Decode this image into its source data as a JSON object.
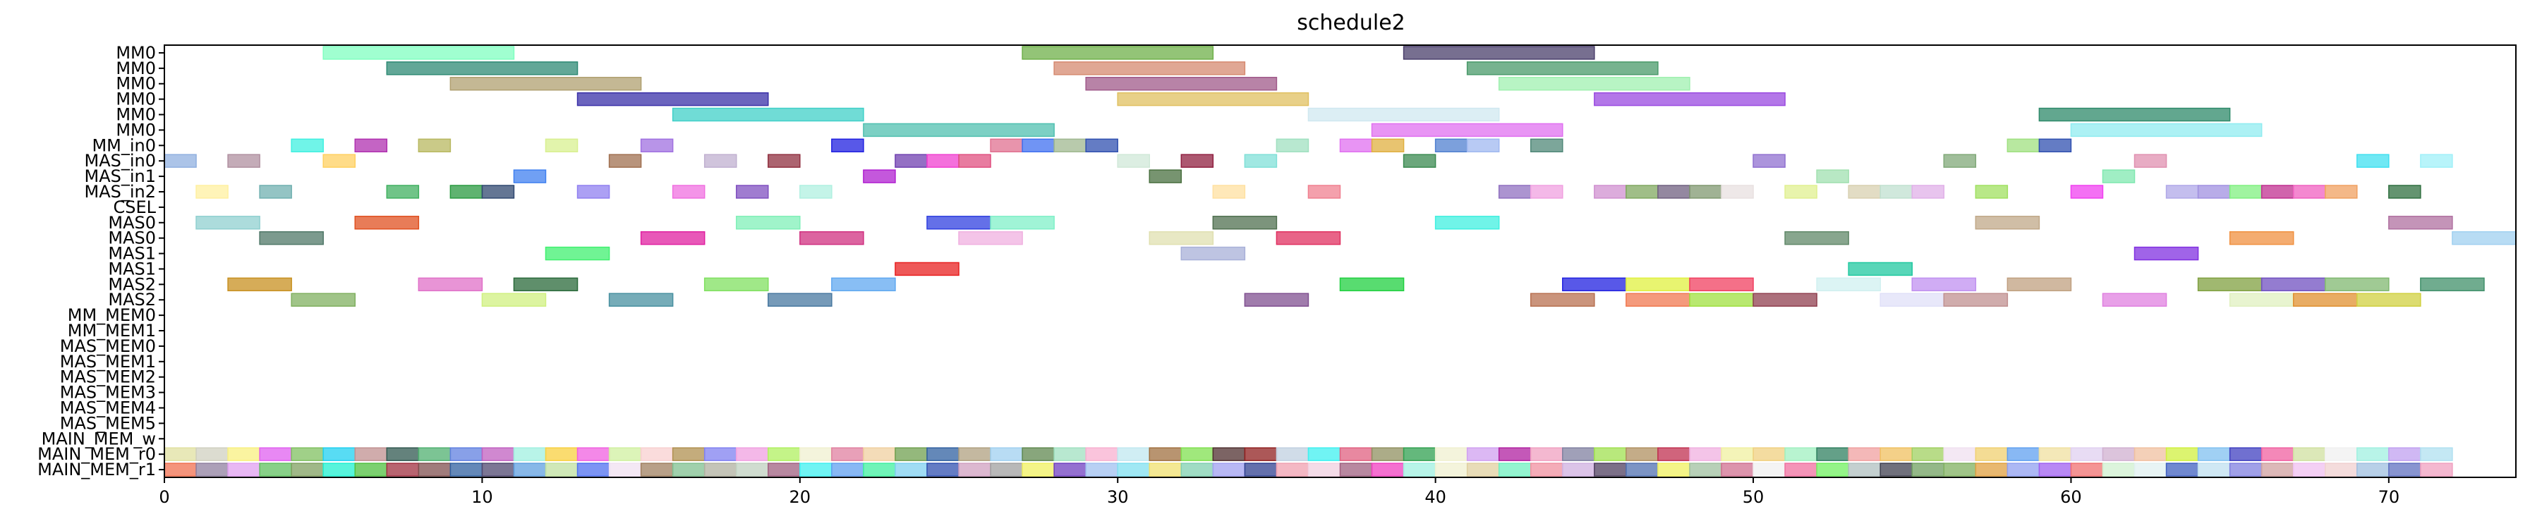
{
  "chart_data": {
    "type": "gantt",
    "title": "schedule2",
    "xlabel": "",
    "ylabel": "",
    "xlim": [
      0,
      74
    ],
    "xticks": [
      0,
      10,
      20,
      30,
      40,
      50,
      60,
      70
    ],
    "grid": false,
    "rows": [
      "MM0",
      "MM0",
      "MM0",
      "MM0",
      "MM0",
      "MM0",
      "MM_in0",
      "MAS_in0",
      "MAS_in1",
      "MAS_in2",
      "CSEL",
      "MAS0",
      "MAS0",
      "MAS1",
      "MAS1",
      "MAS2",
      "MAS2",
      "MM_MEM0",
      "MM_MEM1",
      "MAS_MEM0",
      "MAS_MEM1",
      "MAS_MEM2",
      "MAS_MEM3",
      "MAS_MEM4",
      "MAS_MEM5",
      "MAIN_MEM_w",
      "MAIN_MEM_r0",
      "MAIN_MEM_r1"
    ],
    "bars": [
      {
        "row": 0,
        "start": 5,
        "end": 11,
        "color": "#80ffc0"
      },
      {
        "row": 0,
        "start": 27,
        "end": 33,
        "color": "#6fb04a"
      },
      {
        "row": 0,
        "start": 39,
        "end": 45,
        "color": "#4a3f6b"
      },
      {
        "row": 1,
        "start": 7,
        "end": 13,
        "color": "#2e8a74"
      },
      {
        "row": 1,
        "start": 28,
        "end": 34,
        "color": "#d68a70"
      },
      {
        "row": 1,
        "start": 41,
        "end": 47,
        "color": "#4a9a6a"
      },
      {
        "row": 2,
        "start": 9,
        "end": 15,
        "color": "#b0a070"
      },
      {
        "row": 2,
        "start": 29,
        "end": 35,
        "color": "#a05a8a"
      },
      {
        "row": 2,
        "start": 42,
        "end": 48,
        "color": "#a0f0b0"
      },
      {
        "row": 3,
        "start": 13,
        "end": 19,
        "color": "#3a30a8"
      },
      {
        "row": 3,
        "start": 30,
        "end": 36,
        "color": "#e0c060"
      },
      {
        "row": 3,
        "start": 45,
        "end": 51,
        "color": "#9a4ae0"
      },
      {
        "row": 4,
        "start": 16,
        "end": 22,
        "color": "#40d0c8"
      },
      {
        "row": 4,
        "start": 36,
        "end": 42,
        "color": "#d0e8f0"
      },
      {
        "row": 4,
        "start": 59,
        "end": 65,
        "color": "#2e8a6a"
      },
      {
        "row": 5,
        "start": 22,
        "end": 28,
        "color": "#50c0b0"
      },
      {
        "row": 5,
        "start": 38,
        "end": 44,
        "color": "#e070f0"
      },
      {
        "row": 5,
        "start": 60,
        "end": 66,
        "color": "#90ecf0"
      },
      {
        "row": 6,
        "start": 4,
        "end": 5,
        "color": "#40f0e0"
      },
      {
        "row": 6,
        "start": 6,
        "end": 7,
        "color": "#b030b0"
      },
      {
        "row": 6,
        "start": 8,
        "end": 9,
        "color": "#b8b860"
      },
      {
        "row": 6,
        "start": 12,
        "end": 13,
        "color": "#d8f090"
      },
      {
        "row": 6,
        "start": 15,
        "end": 16,
        "color": "#a070e0"
      },
      {
        "row": 6,
        "start": 21,
        "end": 22,
        "color": "#2020e0"
      },
      {
        "row": 6,
        "start": 26,
        "end": 27,
        "color": "#e07090"
      },
      {
        "row": 6,
        "start": 27,
        "end": 28,
        "color": "#4070f0"
      },
      {
        "row": 6,
        "start": 28,
        "end": 29,
        "color": "#a0b890"
      },
      {
        "row": 6,
        "start": 29,
        "end": 30,
        "color": "#3050b0"
      },
      {
        "row": 6,
        "start": 35,
        "end": 36,
        "color": "#a0e0c0"
      },
      {
        "row": 6,
        "start": 37,
        "end": 38,
        "color": "#e070f0"
      },
      {
        "row": 6,
        "start": 38,
        "end": 39,
        "color": "#e0b040"
      },
      {
        "row": 6,
        "start": 40,
        "end": 41,
        "color": "#5080d0"
      },
      {
        "row": 6,
        "start": 41,
        "end": 42,
        "color": "#a0b8f0"
      },
      {
        "row": 6,
        "start": 43,
        "end": 44,
        "color": "#508878"
      },
      {
        "row": 6,
        "start": 58,
        "end": 59,
        "color": "#a0e080"
      },
      {
        "row": 6,
        "start": 59,
        "end": 60,
        "color": "#3050b0"
      },
      {
        "row": 7,
        "start": 0,
        "end": 1,
        "color": "#90b0e0"
      },
      {
        "row": 7,
        "start": 2,
        "end": 3,
        "color": "#b090a0"
      },
      {
        "row": 7,
        "start": 5,
        "end": 6,
        "color": "#ffd060"
      },
      {
        "row": 7,
        "start": 14,
        "end": 15,
        "color": "#a07050"
      },
      {
        "row": 7,
        "start": 17,
        "end": 18,
        "color": "#c0b0d0"
      },
      {
        "row": 7,
        "start": 19,
        "end": 20,
        "color": "#903040"
      },
      {
        "row": 7,
        "start": 23,
        "end": 24,
        "color": "#7040b0"
      },
      {
        "row": 7,
        "start": 24,
        "end": 25,
        "color": "#f040d0"
      },
      {
        "row": 7,
        "start": 25,
        "end": 26,
        "color": "#e05080"
      },
      {
        "row": 7,
        "start": 30,
        "end": 31,
        "color": "#d0e8d8"
      },
      {
        "row": 7,
        "start": 32,
        "end": 33,
        "color": "#902040"
      },
      {
        "row": 7,
        "start": 34,
        "end": 35,
        "color": "#80e0d8"
      },
      {
        "row": 7,
        "start": 39,
        "end": 40,
        "color": "#3a8a50"
      },
      {
        "row": 7,
        "start": 50,
        "end": 51,
        "color": "#9070d0"
      },
      {
        "row": 7,
        "start": 56,
        "end": 57,
        "color": "#80a878"
      },
      {
        "row": 7,
        "start": 62,
        "end": 63,
        "color": "#e090b0"
      },
      {
        "row": 7,
        "start": 69,
        "end": 70,
        "color": "#40e0f0"
      },
      {
        "row": 7,
        "start": 71,
        "end": 72,
        "color": "#a0f0f8"
      },
      {
        "row": 8,
        "start": 11,
        "end": 12,
        "color": "#4080f0"
      },
      {
        "row": 8,
        "start": 22,
        "end": 23,
        "color": "#b020d0"
      },
      {
        "row": 8,
        "start": 31,
        "end": 32,
        "color": "#4a7040"
      },
      {
        "row": 8,
        "start": 52,
        "end": 53,
        "color": "#a0e0b0"
      },
      {
        "row": 8,
        "start": 61,
        "end": 62,
        "color": "#80e8b0"
      },
      {
        "row": 9,
        "start": 1,
        "end": 2,
        "color": "#fff0a0"
      },
      {
        "row": 9,
        "start": 3,
        "end": 4,
        "color": "#70b0b0"
      },
      {
        "row": 9,
        "start": 7,
        "end": 8,
        "color": "#40b060"
      },
      {
        "row": 9,
        "start": 9,
        "end": 10,
        "color": "#2a9a40"
      },
      {
        "row": 9,
        "start": 10,
        "end": 11,
        "color": "#304870"
      },
      {
        "row": 9,
        "start": 13,
        "end": 14,
        "color": "#9080f0"
      },
      {
        "row": 9,
        "start": 16,
        "end": 17,
        "color": "#f070e0"
      },
      {
        "row": 9,
        "start": 18,
        "end": 19,
        "color": "#8050c0"
      },
      {
        "row": 9,
        "start": 20,
        "end": 21,
        "color": "#b0f0e0"
      },
      {
        "row": 9,
        "start": 33,
        "end": 34,
        "color": "#ffe0a0"
      },
      {
        "row": 9,
        "start": 36,
        "end": 37,
        "color": "#f08090"
      },
      {
        "row": 9,
        "start": 42,
        "end": 43,
        "color": "#9070c0"
      },
      {
        "row": 9,
        "start": 43,
        "end": 44,
        "color": "#f0a0e0"
      },
      {
        "row": 9,
        "start": 45,
        "end": 46,
        "color": "#d090d0"
      },
      {
        "row": 9,
        "start": 46,
        "end": 47,
        "color": "#80a860"
      },
      {
        "row": 9,
        "start": 47,
        "end": 48,
        "color": "#706080"
      },
      {
        "row": 9,
        "start": 48,
        "end": 49,
        "color": "#809870"
      },
      {
        "row": 9,
        "start": 49,
        "end": 50,
        "color": "#e8e0e0"
      },
      {
        "row": 9,
        "start": 51,
        "end": 52,
        "color": "#e0f090"
      },
      {
        "row": 9,
        "start": 53,
        "end": 54,
        "color": "#d8d0b0"
      },
      {
        "row": 9,
        "start": 54,
        "end": 55,
        "color": "#c0e0d0"
      },
      {
        "row": 9,
        "start": 55,
        "end": 56,
        "color": "#e0b0e8"
      },
      {
        "row": 9,
        "start": 57,
        "end": 58,
        "color": "#a0e060"
      },
      {
        "row": 9,
        "start": 60,
        "end": 61,
        "color": "#f040f0"
      },
      {
        "row": 9,
        "start": 63,
        "end": 64,
        "color": "#b0a8e8"
      },
      {
        "row": 9,
        "start": 64,
        "end": 65,
        "color": "#a090e0"
      },
      {
        "row": 9,
        "start": 65,
        "end": 66,
        "color": "#80f080"
      },
      {
        "row": 9,
        "start": 66,
        "end": 67,
        "color": "#c03090"
      },
      {
        "row": 9,
        "start": 67,
        "end": 68,
        "color": "#f060c0"
      },
      {
        "row": 9,
        "start": 68,
        "end": 69,
        "color": "#f0a060"
      },
      {
        "row": 9,
        "start": 70,
        "end": 71,
        "color": "#307040"
      },
      {
        "row": 11,
        "start": 1,
        "end": 3,
        "color": "#90d0d0"
      },
      {
        "row": 11,
        "start": 6,
        "end": 8,
        "color": "#e05020"
      },
      {
        "row": 11,
        "start": 18,
        "end": 20,
        "color": "#80f0b8"
      },
      {
        "row": 11,
        "start": 24,
        "end": 26,
        "color": "#3040e0"
      },
      {
        "row": 11,
        "start": 26,
        "end": 28,
        "color": "#80f0c8"
      },
      {
        "row": 11,
        "start": 33,
        "end": 35,
        "color": "#507050"
      },
      {
        "row": 11,
        "start": 40,
        "end": 42,
        "color": "#40f0e0"
      },
      {
        "row": 11,
        "start": 57,
        "end": 59,
        "color": "#c0a888"
      },
      {
        "row": 11,
        "start": 70,
        "end": 72,
        "color": "#b070a0"
      },
      {
        "row": 12,
        "start": 3,
        "end": 5,
        "color": "#507868"
      },
      {
        "row": 12,
        "start": 15,
        "end": 17,
        "color": "#e020a0"
      },
      {
        "row": 12,
        "start": 20,
        "end": 22,
        "color": "#d03080"
      },
      {
        "row": 12,
        "start": 25,
        "end": 27,
        "color": "#f0b0e0"
      },
      {
        "row": 12,
        "start": 31,
        "end": 33,
        "color": "#e0e0b0"
      },
      {
        "row": 12,
        "start": 35,
        "end": 37,
        "color": "#e03060"
      },
      {
        "row": 12,
        "start": 51,
        "end": 53,
        "color": "#608868"
      },
      {
        "row": 12,
        "start": 65,
        "end": 67,
        "color": "#f09040"
      },
      {
        "row": 12,
        "start": 72,
        "end": 74,
        "color": "#a0d0f0"
      },
      {
        "row": 13,
        "start": 12,
        "end": 14,
        "color": "#40f070"
      },
      {
        "row": 13,
        "start": 32,
        "end": 34,
        "color": "#a8b0d8"
      },
      {
        "row": 13,
        "start": 62,
        "end": 64,
        "color": "#8030e0"
      },
      {
        "row": 14,
        "start": 23,
        "end": 25,
        "color": "#e82020"
      },
      {
        "row": 14,
        "start": 53,
        "end": 55,
        "color": "#20c8a0"
      },
      {
        "row": 15,
        "start": 2,
        "end": 4,
        "color": "#c89020"
      },
      {
        "row": 15,
        "start": 8,
        "end": 10,
        "color": "#e070c8"
      },
      {
        "row": 15,
        "start": 11,
        "end": 13,
        "color": "#2a6a3a"
      },
      {
        "row": 15,
        "start": 17,
        "end": 19,
        "color": "#80e060"
      },
      {
        "row": 15,
        "start": 21,
        "end": 23,
        "color": "#60a8f0"
      },
      {
        "row": 15,
        "start": 37,
        "end": 39,
        "color": "#20d040"
      },
      {
        "row": 15,
        "start": 44,
        "end": 46,
        "color": "#2020e0"
      },
      {
        "row": 15,
        "start": 46,
        "end": 48,
        "color": "#e0f040"
      },
      {
        "row": 15,
        "start": 48,
        "end": 50,
        "color": "#f04060"
      },
      {
        "row": 15,
        "start": 52,
        "end": 54,
        "color": "#d0f0f0"
      },
      {
        "row": 15,
        "start": 55,
        "end": 57,
        "color": "#c090f0"
      },
      {
        "row": 15,
        "start": 58,
        "end": 60,
        "color": "#c0a080"
      },
      {
        "row": 15,
        "start": 64,
        "end": 66,
        "color": "#80a040"
      },
      {
        "row": 15,
        "start": 66,
        "end": 68,
        "color": "#7050c0"
      },
      {
        "row": 15,
        "start": 68,
        "end": 70,
        "color": "#80b870"
      },
      {
        "row": 15,
        "start": 71,
        "end": 73,
        "color": "#40906a"
      },
      {
        "row": 16,
        "start": 4,
        "end": 6,
        "color": "#80b060"
      },
      {
        "row": 16,
        "start": 10,
        "end": 12,
        "color": "#d0f080"
      },
      {
        "row": 16,
        "start": 14,
        "end": 16,
        "color": "#4890a0"
      },
      {
        "row": 16,
        "start": 19,
        "end": 21,
        "color": "#4878a0"
      },
      {
        "row": 16,
        "start": 34,
        "end": 36,
        "color": "#805090"
      },
      {
        "row": 16,
        "start": 43,
        "end": 45,
        "color": "#b87050"
      },
      {
        "row": 16,
        "start": 46,
        "end": 48,
        "color": "#f07850"
      },
      {
        "row": 16,
        "start": 48,
        "end": 50,
        "color": "#a0e040"
      },
      {
        "row": 16,
        "start": 50,
        "end": 52,
        "color": "#904050"
      },
      {
        "row": 16,
        "start": 54,
        "end": 56,
        "color": "#e0e0f8"
      },
      {
        "row": 16,
        "start": 56,
        "end": 58,
        "color": "#c09090"
      },
      {
        "row": 16,
        "start": 61,
        "end": 63,
        "color": "#e080e0"
      },
      {
        "row": 16,
        "start": 65,
        "end": 67,
        "color": "#e0f0c0"
      },
      {
        "row": 16,
        "start": 67,
        "end": 69,
        "color": "#e09030"
      },
      {
        "row": 16,
        "start": 69,
        "end": 71,
        "color": "#d0d040"
      }
    ],
    "mem_rows": [
      {
        "row": 26,
        "start": 0,
        "colors": [
          "#e0e0a0",
          "#d0d0c0",
          "#f8f080",
          "#e060f0",
          "#80c060",
          "#20d0f0",
          "#c09090",
          "#305850",
          "#50b070",
          "#6080e0",
          "#c060c0",
          "#a0f0e0",
          "#f8d040",
          "#f060e0",
          "#d0f0a0",
          "#f8d0d0",
          "#b09050",
          "#8080f0",
          "#f0a0e0",
          "#b0f060",
          "#f0f0d0",
          "#e080a0",
          "#f0d0a0",
          "#70a050",
          "#3060a0",
          "#b0a080",
          "#a0d0f0",
          "#608850",
          "#a0e0c0",
          "#f8b0d0",
          "#c0e8f0",
          "#a07040",
          "#80e050",
          "#503030",
          "#902020",
          "#c0d0e0",
          "#40f0f0",
          "#e06080",
          "#909060",
          "#30a050",
          "#f0f0d0",
          "#d0a0f0",
          "#b020a0",
          "#f0a0c0",
          "#8080a0",
          "#a0e050",
          "#b09060",
          "#c03050",
          "#f0b0e0",
          "#f0f0a0",
          "#f0d080",
          "#a0f0c0",
          "#308060",
          "#f0a0a0",
          "#f0c060",
          "#a0d060",
          "#f0e0f0",
          "#f0d070",
          "#60a0f0",
          "#f0e0a0",
          "#e0d0f0",
          "#d0b0d0",
          "#f0c0a0",
          "#d0f040",
          "#80c0f0",
          "#4040c0",
          "#f060a0",
          "#d0e0a0",
          "#f0f0f0",
          "#a0f0e0",
          "#c0a0f0",
          "#b0e0f0"
        ]
      },
      {
        "row": 27,
        "start": 0,
        "colors": [
          "#f07050",
          "#9080a0",
          "#e0a0f0",
          "#60c060",
          "#80a060",
          "#20f0d0",
          "#50c040",
          "#a03040",
          "#805050",
          "#3060a0",
          "#504870",
          "#60a0e0",
          "#c0e0a0",
          "#5070f0",
          "#f0e0f0",
          "#a08060",
          "#80c090",
          "#b0b0a0",
          "#c0d0c0",
          "#a06080",
          "#40f0f0",
          "#60a0f0",
          "#40f0a0",
          "#80d0f0",
          "#3050b0",
          "#d0a0c0",
          "#a0a0a0",
          "#f0f060",
          "#7040c0",
          "#a0c0f0",
          "#80e0f0",
          "#f0e070",
          "#80d0b0",
          "#a0a0f0",
          "#304090",
          "#f0a0b0",
          "#f0d0e0",
          "#a06080",
          "#f040c0",
          "#a0f0e0",
          "#f0f0d0",
          "#e0d0a0",
          "#70f0c0",
          "#f090a0",
          "#d0b0e0",
          "#504060",
          "#5070b0",
          "#f0f060",
          "#a0c0a0",
          "#d07090",
          "#f0f0f0",
          "#f070a0",
          "#70f060",
          "#b0c0c0",
          "#404050",
          "#70a060",
          "#80b060",
          "#e0a040",
          "#90a0f0",
          "#a060f0",
          "#f07070",
          "#d0f0d0",
          "#e0f0f0",
          "#4060c0",
          "#c0e0f0",
          "#8080e0",
          "#d0a0a0",
          "#f0c0f0",
          "#f0d0d0",
          "#a0c0e0",
          "#6070c0",
          "#f0a0c0"
        ]
      }
    ]
  }
}
